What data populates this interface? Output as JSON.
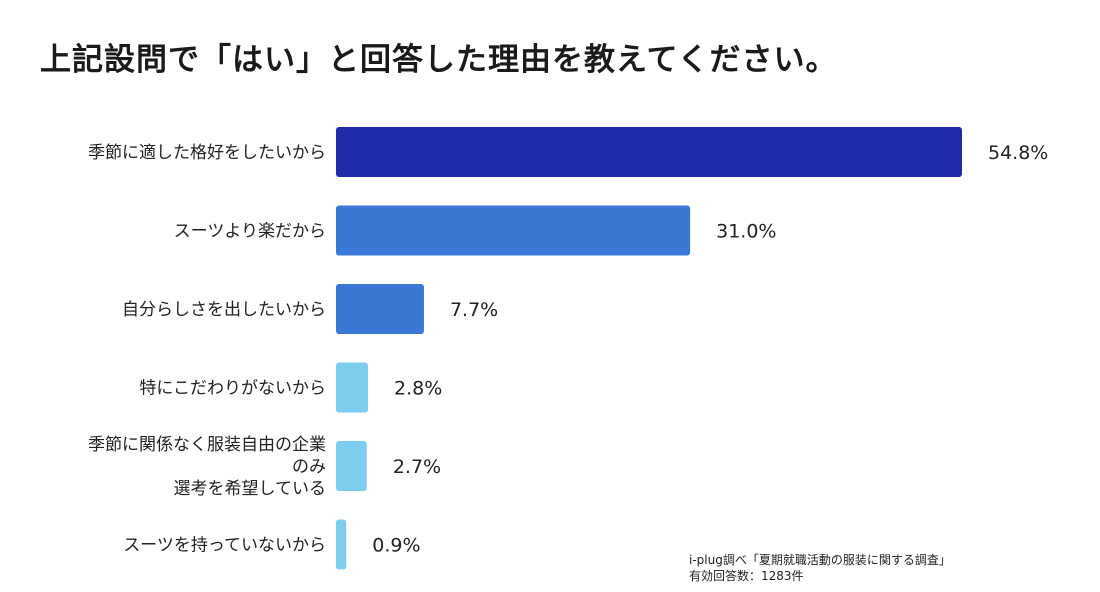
{
  "chart_data": {
    "type": "bar",
    "orientation": "horizontal",
    "title": "上記設問で「はい」と回答した理由を教えてください。",
    "categories": [
      [
        "季節に適した格好をしたいから"
      ],
      [
        "スーツより楽だから"
      ],
      [
        "自分らしさを出したいから"
      ],
      [
        "特にこだわりがないから"
      ],
      [
        "季節に関係なく服装自由の企業",
        "のみ",
        "選考を希望している"
      ],
      [
        "スーツを持っていないから"
      ]
    ],
    "values": [
      54.8,
      31.0,
      7.7,
      2.8,
      2.7,
      0.9
    ],
    "value_labels": [
      "54.8%",
      "31.0%",
      "7.7%",
      "2.8%",
      "2.7%",
      "0.9%"
    ],
    "colors": [
      "#1f2aa6",
      "#3a78d6",
      "#3a78d6",
      "#7dcdee",
      "#7dcdee",
      "#7dcdee"
    ],
    "xlim": [
      0,
      54.8
    ],
    "grid": false,
    "legend": "none"
  },
  "source": {
    "line1": "i-plug調べ「夏期就職活動の服装に関する調査」",
    "line2": "有効回答数：1283件"
  }
}
